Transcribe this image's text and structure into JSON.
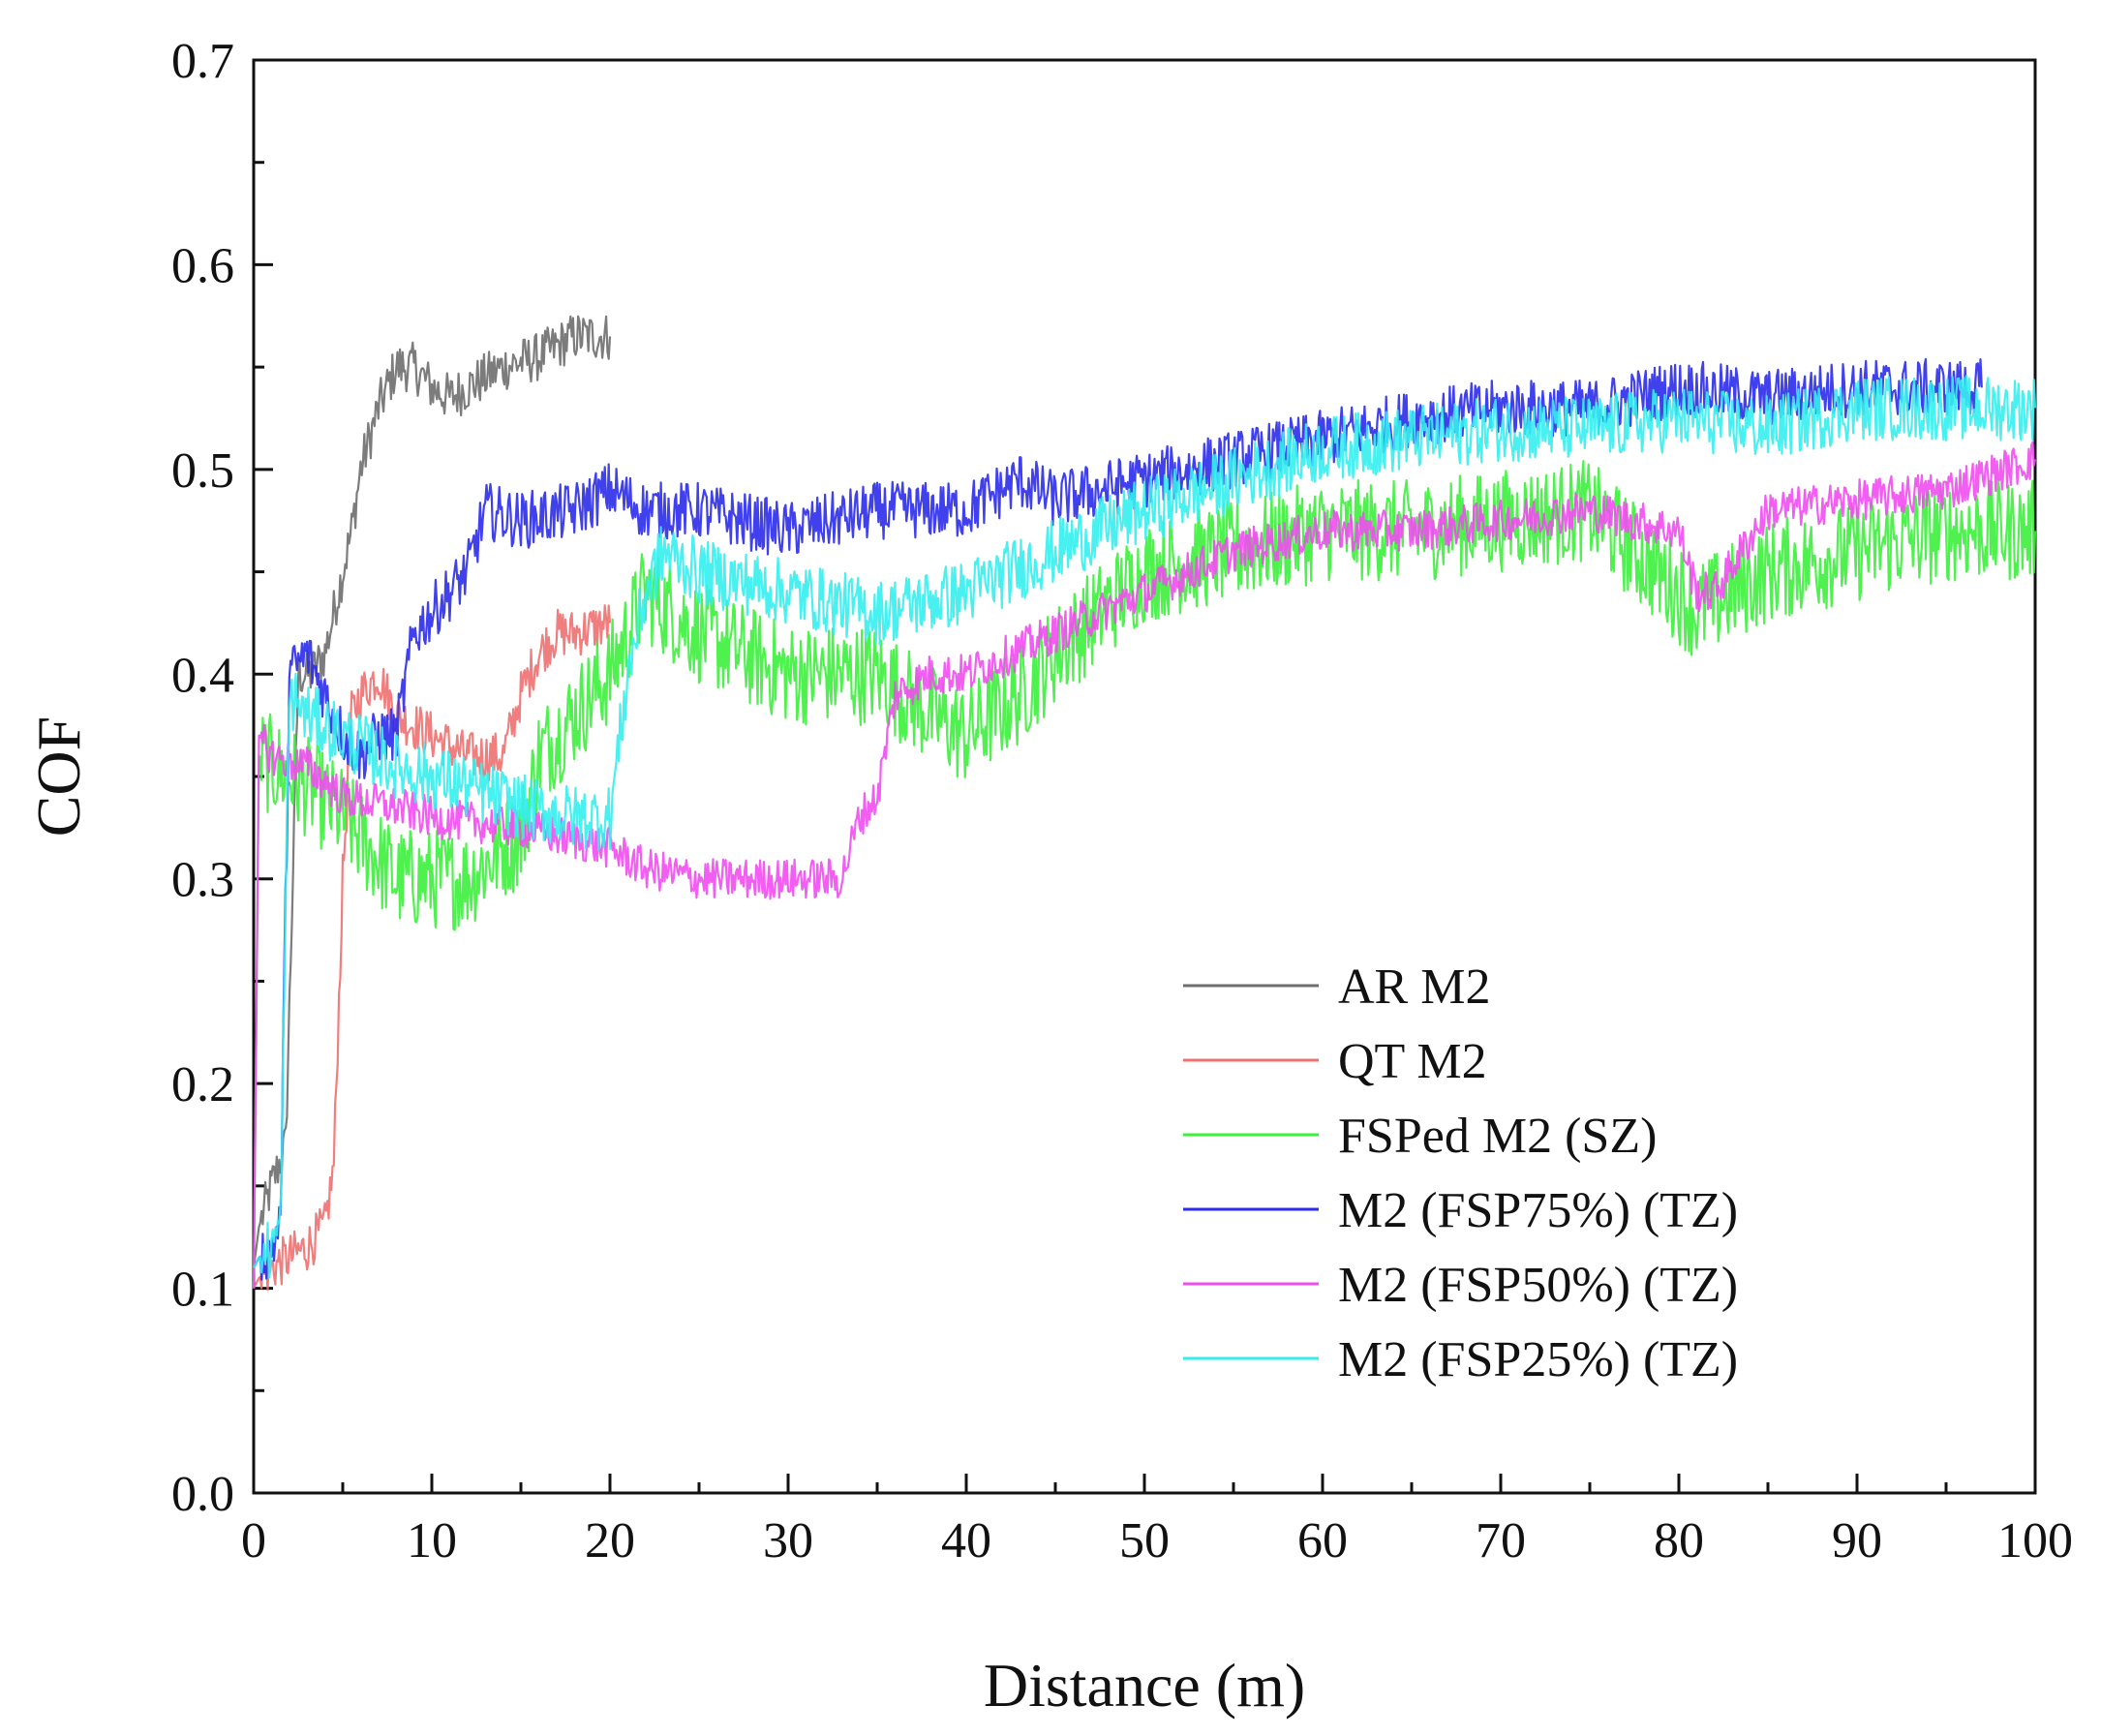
{
  "chart_data": {
    "type": "line",
    "xlabel": "Distance (m)",
    "ylabel": "COF",
    "xlim": [
      0,
      100
    ],
    "ylim": [
      0.0,
      0.7
    ],
    "x_ticks": [
      "0",
      "10",
      "20",
      "30",
      "40",
      "50",
      "60",
      "70",
      "80",
      "90",
      "100"
    ],
    "y_ticks": [
      "0.0",
      "0.1",
      "0.2",
      "0.3",
      "0.4",
      "0.5",
      "0.6",
      "0.7"
    ],
    "grid": false,
    "legend_position": "bottom-right",
    "series": [
      {
        "name": "AR M2",
        "color": "#6e6e6e",
        "noise": 0.012,
        "x": [
          0,
          0.3,
          1,
          1.8,
          2.5,
          3.2,
          4,
          4.5,
          5,
          5.5,
          6,
          7,
          8,
          9,
          10,
          11,
          12,
          14,
          16,
          18,
          20
        ],
        "y": [
          0.11,
          0.13,
          0.15,
          0.17,
          0.4,
          0.4,
          0.41,
          0.43,
          0.45,
          0.47,
          0.5,
          0.53,
          0.55,
          0.55,
          0.54,
          0.535,
          0.54,
          0.55,
          0.555,
          0.565,
          0.565
        ]
      },
      {
        "name": "QT M2",
        "color": "#ee7070",
        "noise": 0.012,
        "x": [
          0,
          0.3,
          1,
          2,
          3,
          4,
          4.5,
          5,
          5.5,
          6,
          7,
          8,
          10,
          12,
          14,
          15,
          16,
          17,
          18,
          20
        ],
        "y": [
          0.1,
          0.105,
          0.11,
          0.115,
          0.12,
          0.13,
          0.16,
          0.3,
          0.38,
          0.39,
          0.4,
          0.38,
          0.37,
          0.36,
          0.36,
          0.39,
          0.41,
          0.42,
          0.42,
          0.425
        ]
      },
      {
        "name": "FSPed M2 (SZ)",
        "color": "#3cf03c",
        "noise": 0.025,
        "x": [
          0,
          0.3,
          1,
          3,
          5,
          7,
          8,
          10,
          12,
          14,
          15,
          16,
          18,
          20,
          22,
          25,
          30,
          35,
          38,
          40,
          43,
          45,
          50,
          55,
          60,
          65,
          70,
          75,
          80,
          81,
          83,
          85,
          90,
          95,
          100
        ],
        "y": [
          0.1,
          0.36,
          0.355,
          0.345,
          0.33,
          0.31,
          0.3,
          0.3,
          0.3,
          0.315,
          0.32,
          0.36,
          0.38,
          0.4,
          0.44,
          0.42,
          0.4,
          0.4,
          0.38,
          0.37,
          0.39,
          0.41,
          0.45,
          0.46,
          0.47,
          0.47,
          0.475,
          0.48,
          0.44,
          0.43,
          0.44,
          0.45,
          0.46,
          0.47,
          0.47
        ]
      },
      {
        "name": "M2 (FSP75%) (TZ)",
        "color": "#2b2bea",
        "noise": 0.014,
        "x": [
          0,
          0.3,
          1,
          1.5,
          2,
          3,
          4,
          5,
          6,
          7,
          8,
          9,
          10,
          12,
          13,
          15,
          18,
          20,
          22,
          25,
          30,
          35,
          40,
          43,
          45,
          50,
          55,
          60,
          65,
          70,
          75,
          80,
          85,
          90,
          95,
          97
        ],
        "y": [
          0.11,
          0.115,
          0.12,
          0.13,
          0.4,
          0.41,
          0.39,
          0.37,
          0.36,
          0.37,
          0.37,
          0.42,
          0.43,
          0.45,
          0.48,
          0.475,
          0.48,
          0.49,
          0.48,
          0.48,
          0.47,
          0.48,
          0.48,
          0.495,
          0.485,
          0.495,
          0.505,
          0.515,
          0.525,
          0.53,
          0.53,
          0.54,
          0.535,
          0.54,
          0.54,
          0.54
        ]
      },
      {
        "name": "M2 (FSP50%) (TZ)",
        "color": "#f04cf0",
        "noise": 0.01,
        "x": [
          0,
          0.3,
          1,
          3,
          5,
          8,
          10,
          15,
          20,
          22,
          25,
          30,
          33,
          34,
          35,
          36,
          38,
          40,
          45,
          50,
          55,
          60,
          65,
          70,
          75,
          80,
          81,
          82,
          85,
          90,
          95,
          100
        ],
        "y": [
          0.1,
          0.37,
          0.36,
          0.355,
          0.34,
          0.335,
          0.33,
          0.325,
          0.315,
          0.305,
          0.3,
          0.3,
          0.3,
          0.33,
          0.34,
          0.39,
          0.4,
          0.4,
          0.42,
          0.44,
          0.46,
          0.47,
          0.47,
          0.475,
          0.48,
          0.47,
          0.44,
          0.44,
          0.48,
          0.485,
          0.49,
          0.505
        ]
      },
      {
        "name": "M2 (FSP25%) (TZ)",
        "color": "#34eeee",
        "noise": 0.016,
        "x": [
          0,
          0.3,
          1,
          1.5,
          2,
          3,
          5,
          8,
          10,
          12,
          15,
          18,
          20,
          21,
          22,
          23,
          25,
          30,
          35,
          40,
          45,
          50,
          55,
          60,
          65,
          70,
          75,
          80,
          85,
          90,
          95,
          100
        ],
        "y": [
          0.11,
          0.115,
          0.12,
          0.13,
          0.39,
          0.38,
          0.37,
          0.355,
          0.35,
          0.345,
          0.335,
          0.33,
          0.33,
          0.4,
          0.44,
          0.46,
          0.45,
          0.44,
          0.43,
          0.44,
          0.46,
          0.48,
          0.495,
          0.51,
          0.515,
          0.52,
          0.52,
          0.525,
          0.52,
          0.53,
          0.53,
          0.53
        ]
      }
    ]
  }
}
